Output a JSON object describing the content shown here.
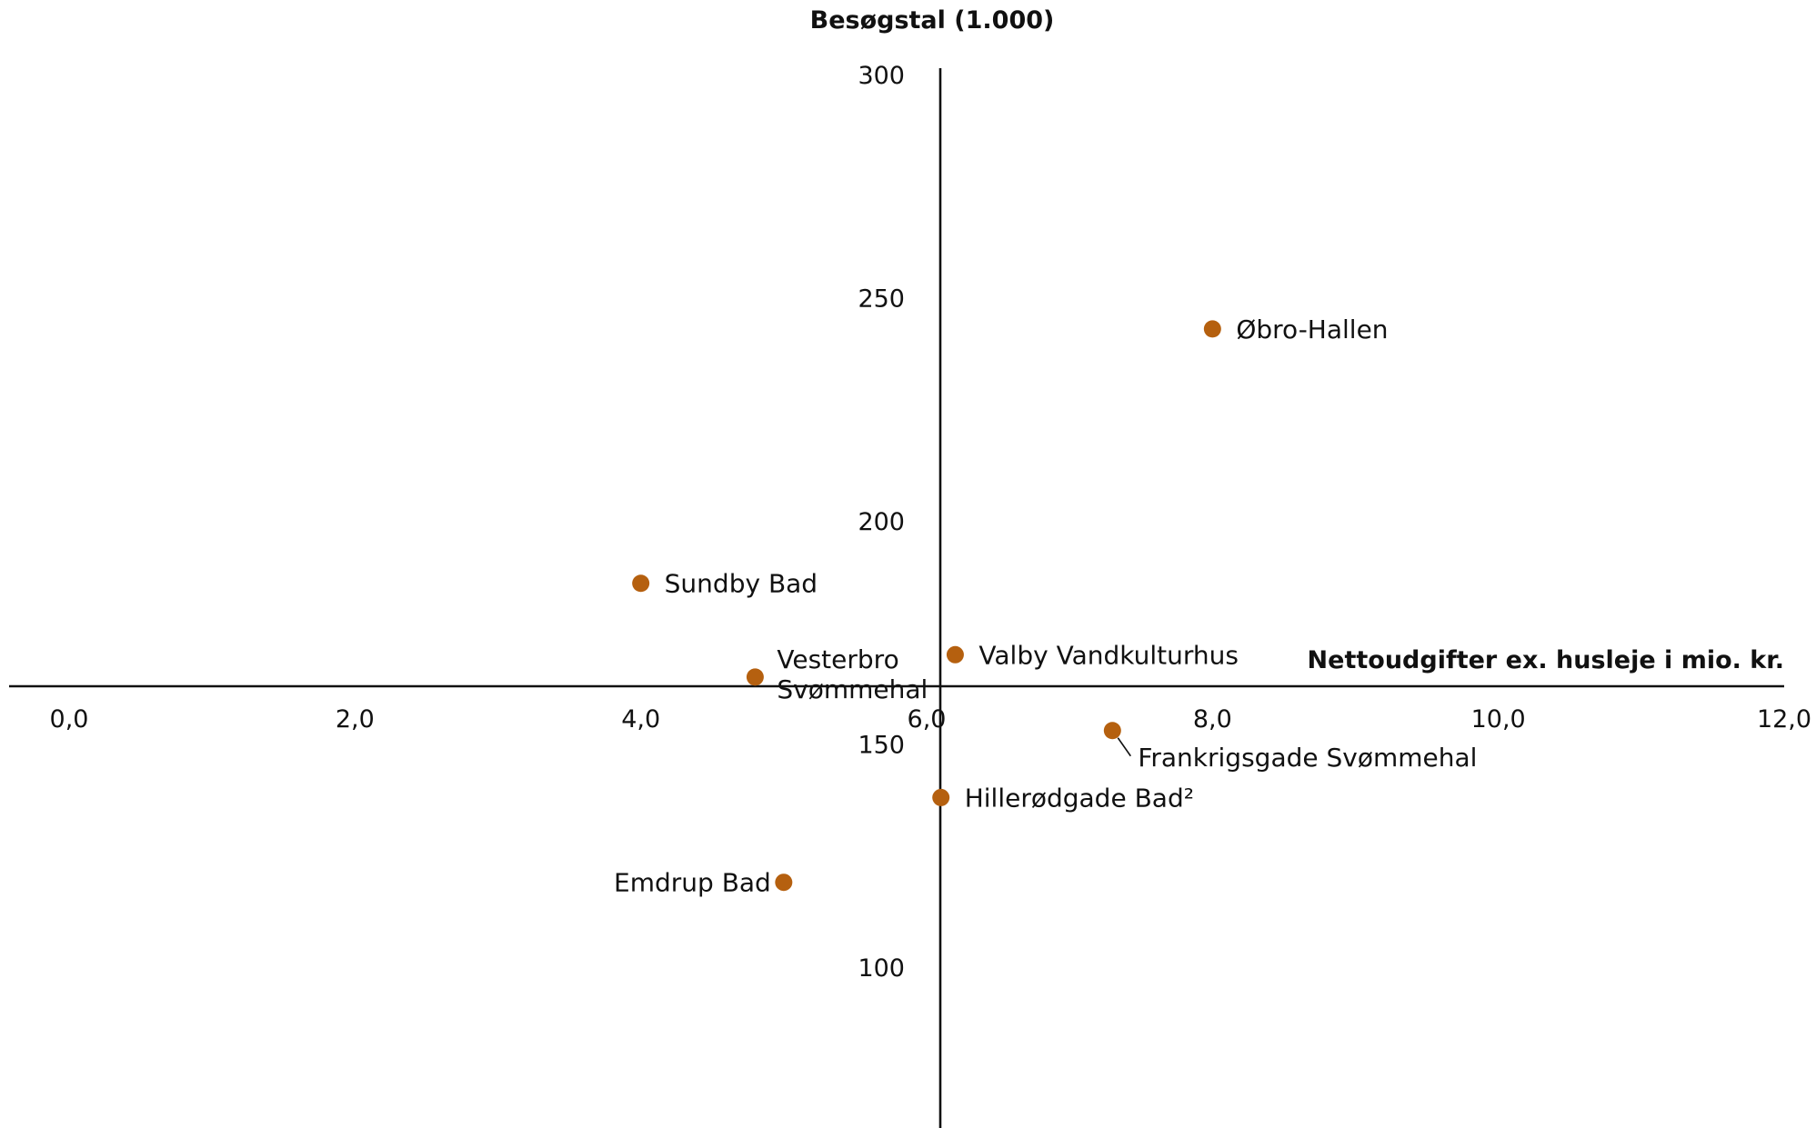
{
  "chart_data": {
    "type": "scatter",
    "title": "",
    "xlabel": "Nettoudgifter ex. husleje i mio. kr.",
    "ylabel": "Besøgstal (1.000)",
    "xlim": [
      -0.4,
      12.0
    ],
    "ylim": [
      60,
      300
    ],
    "x_ticks": [
      {
        "value": 0,
        "label": "0,0"
      },
      {
        "value": 2,
        "label": "2,0"
      },
      {
        "value": 4,
        "label": "4,0"
      },
      {
        "value": 6,
        "label": "6,0"
      },
      {
        "value": 8,
        "label": "8,0"
      },
      {
        "value": 10,
        "label": "10,0"
      },
      {
        "value": 12,
        "label": "12,0"
      }
    ],
    "y_ticks": [
      {
        "value": 100,
        "label": "100"
      },
      {
        "value": 150,
        "label": "150"
      },
      {
        "value": 200,
        "label": "200"
      },
      {
        "value": 250,
        "label": "250"
      },
      {
        "value": 300,
        "label": "300"
      }
    ],
    "x_axis_crosses_y_at": 165,
    "y_axis_crosses_x_at": 6.1,
    "grid": false,
    "legend": "none",
    "marker_color": "#b5600f",
    "points": [
      {
        "name": "Øbro-Hallen",
        "x": 8.0,
        "y": 243,
        "label_side": "right"
      },
      {
        "name": "Sundby Bad",
        "x": 4.0,
        "y": 186,
        "label_side": "right"
      },
      {
        "name": "Valby Vandkulturhus",
        "x": 6.2,
        "y": 170,
        "label_side": "right"
      },
      {
        "name": "Vesterbro Svømmehal",
        "x": 4.8,
        "y": 165,
        "label_side": "right-two-line",
        "label_lines": [
          "Vesterbro",
          "Svømmehal"
        ]
      },
      {
        "name": "Frankrigsgade Svømmehal",
        "x": 7.3,
        "y": 153,
        "label_side": "right-below-leader"
      },
      {
        "name": "Hillerødgade Bad²",
        "x": 6.1,
        "y": 138,
        "label_side": "right"
      },
      {
        "name": "Emdrup Bad",
        "x": 5.0,
        "y": 119,
        "label_side": "left"
      }
    ]
  }
}
